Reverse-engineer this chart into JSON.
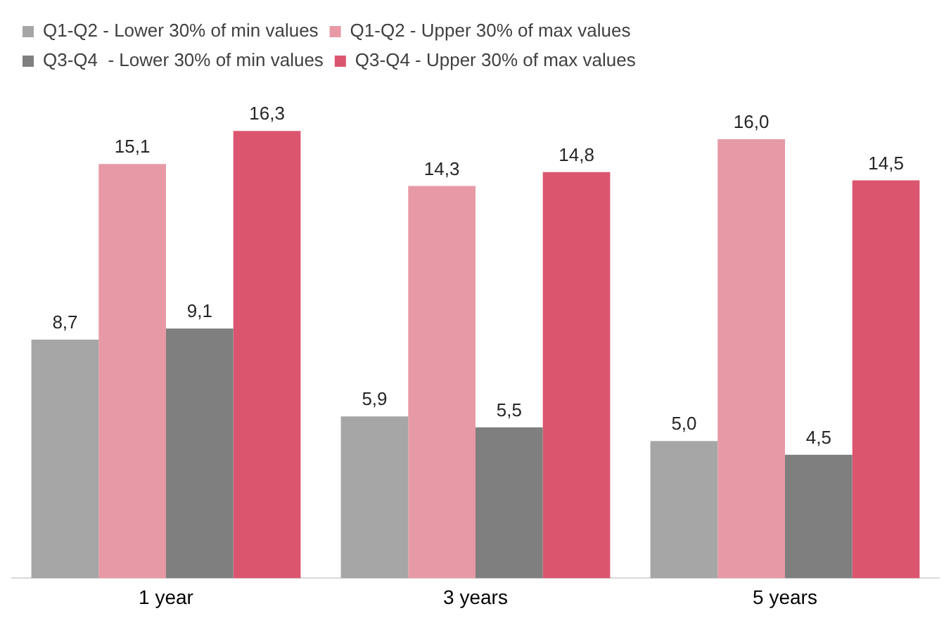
{
  "chart_data": {
    "type": "bar",
    "categories": [
      "1 year",
      "3 years",
      "5 years"
    ],
    "series": [
      {
        "name": "Q1-Q2 - Lower 30% of min values",
        "color": "#a6a6a6",
        "values": [
          8.7,
          5.9,
          5.0
        ],
        "value_labels": [
          "8,7",
          "5,9",
          "5,0"
        ]
      },
      {
        "name": "Q1-Q2 - Upper 30% of max values",
        "color": "#e899a6",
        "values": [
          15.1,
          14.3,
          16.0
        ],
        "value_labels": [
          "15,1",
          "14,3",
          "16,0"
        ]
      },
      {
        "name": "Q3-Q4  - Lower 30% of min values",
        "color": "#7f7f7f",
        "values": [
          9.1,
          5.5,
          4.5
        ],
        "value_labels": [
          "9,1",
          "5,5",
          "4,5"
        ]
      },
      {
        "name": "Q3-Q4 - Upper 30% of max values",
        "color": "#dc556f",
        "values": [
          16.3,
          14.8,
          14.5
        ],
        "value_labels": [
          "16,3",
          "14,8",
          "14,5"
        ]
      }
    ],
    "legend": "top",
    "grid": false,
    "tick_labels": "x"
  }
}
